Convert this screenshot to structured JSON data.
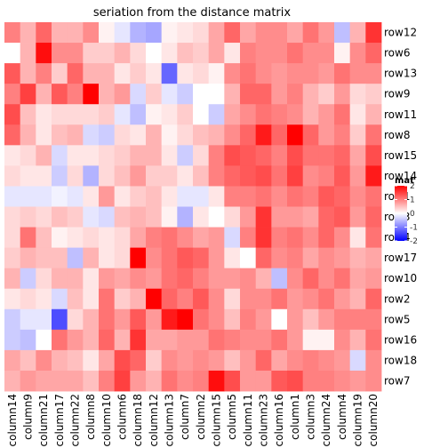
{
  "chart_data": {
    "type": "heatmap",
    "title": "seriation from the distance matrix",
    "rows": [
      "row12",
      "row6",
      "row13",
      "row9",
      "row11",
      "row8",
      "row15",
      "row14",
      "row1",
      "row3",
      "row4",
      "row17",
      "row10",
      "row2",
      "row5",
      "row16",
      "row18",
      "row7"
    ],
    "columns": [
      "column14",
      "column9",
      "column21",
      "column17",
      "column22",
      "column8",
      "column10",
      "column6",
      "column18",
      "column12",
      "column13",
      "column7",
      "column2",
      "column15",
      "column5",
      "column11",
      "column23",
      "column16",
      "column1",
      "column3",
      "column24",
      "column4",
      "column19",
      "column20"
    ],
    "values": [
      [
        1.0,
        0.6,
        1.2,
        0.6,
        0.6,
        0.9,
        0.1,
        -0.2,
        -0.6,
        -0.7,
        0.1,
        0.2,
        0.3,
        0.7,
        1.2,
        0.7,
        0.9,
        0.9,
        0.7,
        1.1,
        0.8,
        -0.5,
        0.6,
        1.6
      ],
      [
        0.0,
        0.6,
        1.9,
        0.9,
        0.9,
        0.4,
        0.4,
        0.6,
        0.3,
        0.0,
        0.2,
        0.5,
        0.4,
        0.7,
        0.2,
        1.0,
        0.9,
        0.9,
        1.1,
        0.9,
        0.9,
        0.1,
        0.9,
        1.2
      ],
      [
        1.3,
        0.6,
        1.0,
        0.4,
        1.2,
        0.6,
        0.6,
        0.2,
        0.4,
        0.2,
        -1.2,
        0.2,
        0.3,
        0.1,
        0.9,
        1.1,
        0.9,
        0.8,
        0.9,
        0.9,
        0.8,
        1.1,
        0.9,
        0.9
      ],
      [
        1.0,
        1.5,
        0.6,
        1.3,
        1.0,
        2.1,
        0.6,
        0.8,
        -0.3,
        0.4,
        -0.2,
        -0.4,
        0.0,
        0.0,
        0.6,
        1.2,
        1.2,
        0.8,
        1.0,
        0.6,
        0.4,
        0.8,
        0.3,
        0.4
      ],
      [
        1.4,
        0.5,
        0.2,
        0.3,
        0.3,
        0.3,
        0.4,
        -0.2,
        -0.5,
        0.1,
        0.2,
        0.4,
        0.0,
        -0.4,
        0.7,
        0.9,
        1.1,
        1.0,
        0.9,
        0.6,
        0.8,
        1.1,
        0.2,
        0.6
      ],
      [
        1.2,
        0.6,
        0.2,
        0.5,
        0.6,
        -0.3,
        -0.4,
        0.3,
        0.2,
        0.6,
        0.1,
        0.3,
        0.5,
        0.6,
        0.9,
        1.2,
        1.8,
        1.2,
        2.1,
        1.2,
        0.8,
        1.0,
        0.4,
        1.1
      ],
      [
        0.2,
        0.3,
        0.6,
        -0.3,
        0.2,
        0.2,
        0.3,
        0.4,
        0.6,
        0.6,
        0.2,
        -0.4,
        0.3,
        1.0,
        1.4,
        1.3,
        1.2,
        1.0,
        1.4,
        1.1,
        1.1,
        1.2,
        0.7,
        1.4
      ],
      [
        0.3,
        0.2,
        0.2,
        -0.4,
        0.3,
        -0.6,
        0.3,
        0.5,
        0.8,
        0.4,
        0.4,
        0.2,
        0.5,
        1.0,
        1.2,
        1.3,
        1.4,
        1.1,
        1.5,
        0.9,
        1.0,
        1.3,
        0.8,
        1.8
      ],
      [
        -0.2,
        -0.2,
        -0.2,
        -0.1,
        -0.2,
        0.2,
        0.8,
        0.2,
        0.4,
        0.5,
        0.2,
        -0.2,
        -0.2,
        0.2,
        1.0,
        1.0,
        1.1,
        0.9,
        1.1,
        1.0,
        1.3,
        1.2,
        0.9,
        1.1
      ],
      [
        0.3,
        0.4,
        0.3,
        0.5,
        0.4,
        -0.2,
        -0.3,
        0.5,
        0.6,
        0.5,
        0.1,
        -0.6,
        0.2,
        0.0,
        0.3,
        0.8,
        1.6,
        0.8,
        0.8,
        0.7,
        1.2,
        1.3,
        0.8,
        1.2
      ],
      [
        0.3,
        1.1,
        0.5,
        0.1,
        0.2,
        0.3,
        0.2,
        0.3,
        0.7,
        1.0,
        1.1,
        0.9,
        0.7,
        0.8,
        -0.3,
        1.0,
        1.6,
        1.0,
        1.1,
        0.9,
        1.2,
        0.9,
        0.2,
        1.1
      ],
      [
        0.4,
        0.6,
        0.5,
        0.5,
        -0.5,
        0.6,
        0.2,
        0.3,
        2.1,
        0.9,
        1.1,
        1.3,
        1.2,
        0.8,
        0.2,
        0.0,
        1.2,
        0.9,
        1.0,
        0.7,
        0.9,
        0.8,
        0.6,
        0.7
      ],
      [
        0.6,
        -0.4,
        0.3,
        0.6,
        0.6,
        0.2,
        0.8,
        0.7,
        0.9,
        0.8,
        1.1,
        1.2,
        1.0,
        0.8,
        0.8,
        0.9,
        0.6,
        -0.5,
        0.9,
        1.2,
        0.9,
        1.1,
        0.7,
        0.8
      ],
      [
        0.2,
        0.3,
        0.2,
        -0.3,
        0.5,
        0.2,
        1.1,
        0.4,
        0.6,
        2.2,
        1.2,
        1.0,
        1.3,
        0.9,
        0.3,
        0.9,
        0.9,
        1.1,
        0.8,
        0.9,
        1.1,
        0.8,
        0.6,
        1.2
      ],
      [
        -0.4,
        -0.2,
        -0.2,
        -1.4,
        0.3,
        0.6,
        1.1,
        0.8,
        1.3,
        0.8,
        1.8,
        2.0,
        1.1,
        0.9,
        0.5,
        1.0,
        0.8,
        0.0,
        0.8,
        0.5,
        0.8,
        1.0,
        1.0,
        1.0
      ],
      [
        -0.4,
        -0.5,
        0.0,
        1.1,
        0.8,
        0.6,
        1.2,
        0.6,
        1.6,
        0.7,
        0.7,
        0.8,
        0.8,
        1.1,
        1.0,
        0.9,
        0.9,
        1.1,
        0.8,
        0.1,
        0.1,
        0.9,
        0.6,
        1.1
      ],
      [
        0.7,
        0.5,
        0.9,
        0.6,
        0.5,
        0.2,
        0.7,
        1.4,
        1.2,
        0.4,
        0.9,
        0.8,
        0.9,
        0.8,
        0.5,
        0.8,
        1.2,
        0.7,
        0.9,
        1.0,
        0.9,
        0.8,
        -0.3,
        0.9
      ],
      [
        0.6,
        0.8,
        0.7,
        0.7,
        0.7,
        0.5,
        1.0,
        1.5,
        0.8,
        0.6,
        1.1,
        0.9,
        1.0,
        1.9,
        1.4,
        0.8,
        0.8,
        1.3,
        1.4,
        1.0,
        1.0,
        0.9,
        0.8,
        0.9
      ]
    ],
    "legend": {
      "title": "mat",
      "position": "right",
      "ticks": [
        2,
        1,
        0,
        -1,
        -2
      ],
      "range": [
        -2,
        2
      ]
    },
    "colors": {
      "low": "#0000ff",
      "mid": "#ffffff",
      "high": "#ff0000",
      "background": "#ffffff"
    }
  }
}
